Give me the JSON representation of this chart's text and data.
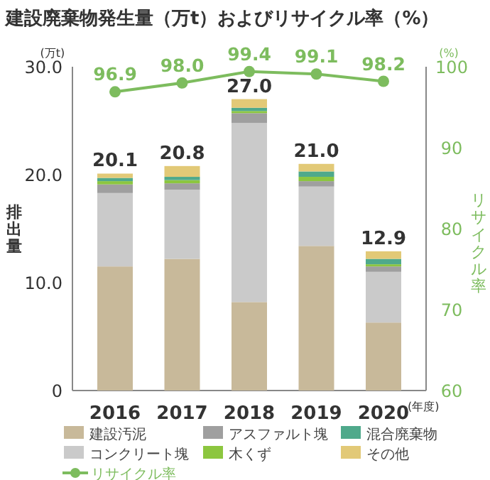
{
  "chart_data": {
    "type": "bar",
    "stacked": true,
    "title": "建設廃棄物発生量（万t）およびリサイクル率（%）",
    "ylabel": "排出量",
    "y2label": "リサイクル率",
    "categories": [
      "2016",
      "2017",
      "2018",
      "2019",
      "2020"
    ],
    "ylim": [
      0,
      30
    ],
    "yticks": [
      0,
      {
        "value": 10,
        "label": "10.0"
      },
      {
        "value": 20,
        "label": "20.0"
      },
      {
        "value": 30,
        "label": "30.0"
      }
    ],
    "y2lim": [
      60,
      100
    ],
    "y2ticks": [
      60,
      70,
      80,
      90,
      100
    ],
    "series": [
      {
        "name": "建設汚泥",
        "color": "#c8b99a",
        "values": [
          11.5,
          12.2,
          8.2,
          13.4,
          6.3
        ]
      },
      {
        "name": "コンクリート塊",
        "color": "#cacaca",
        "values": [
          6.8,
          6.4,
          16.6,
          5.5,
          4.7
        ]
      },
      {
        "name": "アスファルト塊",
        "color": "#9f9f9f",
        "values": [
          0.8,
          0.6,
          0.9,
          0.5,
          0.5
        ]
      },
      {
        "name": "木くず",
        "color": "#8cc63f",
        "values": [
          0.3,
          0.3,
          0.2,
          0.4,
          0.2
        ]
      },
      {
        "name": "混合廃棄物",
        "color": "#4fa98b",
        "values": [
          0.3,
          0.3,
          0.3,
          0.5,
          0.5
        ]
      },
      {
        "name": "その他",
        "color": "#e2c977",
        "values": [
          0.4,
          1.0,
          0.8,
          0.7,
          0.7
        ]
      },
      {
        "name": "リサイクル率",
        "type": "line",
        "axis": "y2",
        "marker": "circle",
        "color": "#7dbc5e",
        "values": [
          96.9,
          98.0,
          99.4,
          99.1,
          98.2
        ],
        "value_labels": [
          "96.9",
          "98.0",
          "99.4",
          "99.1",
          "98.2"
        ]
      }
    ],
    "totals": [
      "20.1",
      "20.8",
      "27.0",
      "21.0",
      "12.9"
    ],
    "legend": "bottom",
    "annotations": [
      "(万t)",
      "(%)",
      "(年度)"
    ]
  }
}
